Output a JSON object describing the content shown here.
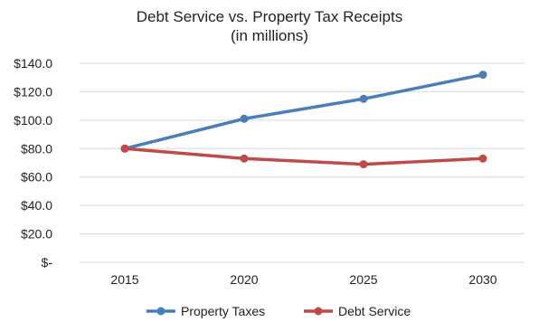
{
  "chart_data": {
    "type": "line",
    "title": "Debt Service vs. Property Tax Receipts",
    "subtitle": "(in millions)",
    "categories": [
      "2015",
      "2020",
      "2025",
      "2030"
    ],
    "series": [
      {
        "name": "Property Taxes",
        "values": [
          80,
          101,
          115,
          132
        ],
        "color": "#4a7ebb"
      },
      {
        "name": "Debt Service",
        "values": [
          80,
          73,
          69,
          73
        ],
        "color": "#be4b48"
      }
    ],
    "ylim": [
      0,
      140
    ],
    "y_ticks": [
      {
        "value": 140,
        "label": "$140.0"
      },
      {
        "value": 120,
        "label": "$120.0"
      },
      {
        "value": 100,
        "label": "$100.0"
      },
      {
        "value": 80,
        "label": "$80.0"
      },
      {
        "value": 60,
        "label": "$60.0"
      },
      {
        "value": 40,
        "label": "$40.0"
      },
      {
        "value": 20,
        "label": "$20.0"
      },
      {
        "value": 0,
        "label": "$-"
      }
    ],
    "grid": true,
    "legend_position": "bottom"
  }
}
